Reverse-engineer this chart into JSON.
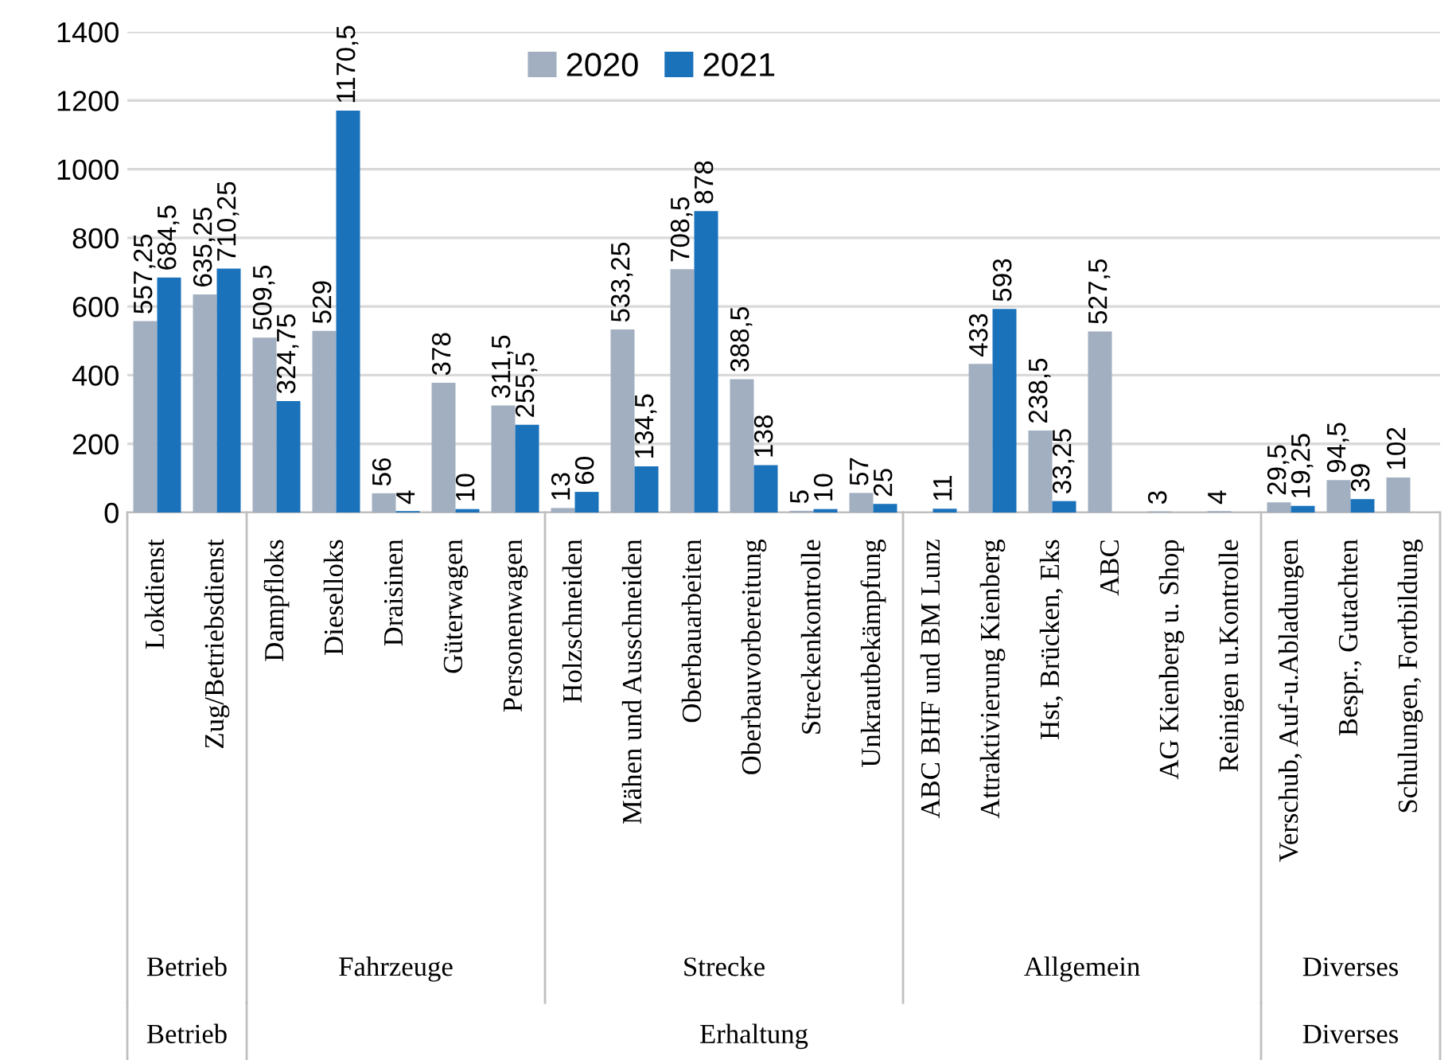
{
  "chart_data": {
    "type": "bar",
    "categories": [
      "Lokdienst",
      "Zug/Betriebsdienst",
      "Dampfloks",
      "Dieselloks",
      "Draisinen",
      "Güterwagen",
      "Personenwagen",
      "Holzschneiden",
      "Mähen und Ausschneiden",
      "Oberbauarbeiten",
      "Oberbauvorbereitung",
      "Streckenkontrolle",
      "Unkrautbekämpfung",
      "ABC BHF und BM Lunz",
      "Attraktivierung Kienberg",
      "Hst, Brücken, Eks",
      "ABC",
      "AG Kienberg u. Shop",
      "Reinigen u.Kontrolle",
      "Verschub, Auf-u.Abladungen",
      "Bespr., Gutachten",
      "Schulungen, Fortbildung"
    ],
    "series": [
      {
        "name": "2020",
        "color": "#a2afc0",
        "values": [
          557.25,
          635.25,
          509.5,
          529,
          56,
          378,
          311.5,
          13,
          533.25,
          708.5,
          388.5,
          5,
          57,
          null,
          433,
          238.5,
          527.5,
          3,
          4,
          29.5,
          94.5,
          102
        ],
        "value_labels": [
          "557,25",
          "635,25",
          "509,5",
          "529",
          "56",
          "378",
          "311,5",
          "13",
          "533,25",
          "708,5",
          "388,5",
          "5",
          "57",
          null,
          "433",
          "238,5",
          "527,5",
          "3",
          "4",
          "29,5",
          "94,5",
          "102"
        ]
      },
      {
        "name": "2021",
        "color": "#1a72bb",
        "values": [
          684.5,
          710.25,
          324.75,
          1170.5,
          4,
          10,
          255.5,
          60,
          134.5,
          878,
          138,
          10,
          25,
          11,
          593,
          33.25,
          null,
          null,
          null,
          19.25,
          39,
          null
        ],
        "value_labels": [
          "684,5",
          "710,25",
          "324,75",
          "1170,5",
          "4",
          "10",
          "255,5",
          "60",
          "134,5",
          "878",
          "138",
          "10",
          "25",
          "11",
          "593",
          "33,25",
          null,
          null,
          null,
          "19,25",
          "39",
          null
        ]
      }
    ],
    "ylim": [
      0,
      1400
    ],
    "yticks": [
      0,
      200,
      400,
      600,
      800,
      1000,
      1200,
      1400
    ],
    "grid": "y",
    "legend": "top",
    "annotations": [
      "Betrieb",
      "Fahrzeuge",
      "Strecke",
      "Allgemein",
      "Diverses",
      "Betrieb",
      "Erhaltung",
      "Diverses"
    ]
  }
}
